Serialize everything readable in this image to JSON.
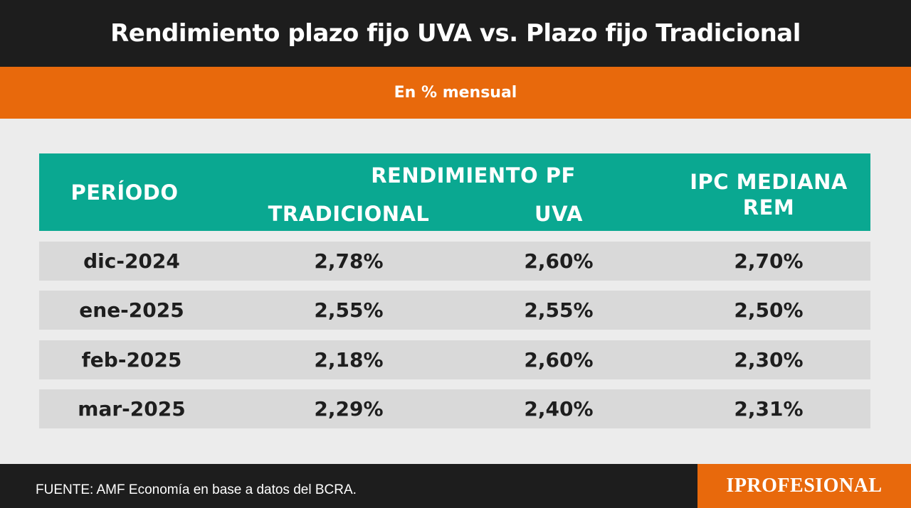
{
  "header": {
    "title": "Rendimiento plazo fijo UVA vs. Plazo fijo Tradicional",
    "subtitle": "En % mensual"
  },
  "colors": {
    "header_bg": "#1d1d1d",
    "accent_orange": "#e8690c",
    "table_header_teal": "#0aa891",
    "row_bg": "#d9d9d9",
    "page_bg": "#ececec"
  },
  "chart_data": {
    "type": "table",
    "title": "Rendimiento plazo fijo UVA vs. Plazo fijo Tradicional",
    "subtitle": "En % mensual",
    "header": {
      "periodo": "PERÍODO",
      "group": "RENDIMIENTO PF",
      "tradicional": "TRADICIONAL",
      "uva": "UVA",
      "ipc_line1": "IPC MEDIANA",
      "ipc_line2": "REM"
    },
    "columns": [
      "PERÍODO",
      "TRADICIONAL",
      "UVA",
      "IPC MEDIANA REM"
    ],
    "rows": [
      [
        "dic-2024",
        "2,78%",
        "2,60%",
        "2,70%"
      ],
      [
        "ene-2025",
        "2,55%",
        "2,55%",
        "2,50%"
      ],
      [
        "feb-2025",
        "2,18%",
        "2,60%",
        "2,30%"
      ],
      [
        "mar-2025",
        "2,29%",
        "2,40%",
        "2,31%"
      ]
    ]
  },
  "footer": {
    "source": "FUENTE:  AMF Economía en base a datos del BCRA.",
    "brand": "IPROFESIONAL"
  }
}
